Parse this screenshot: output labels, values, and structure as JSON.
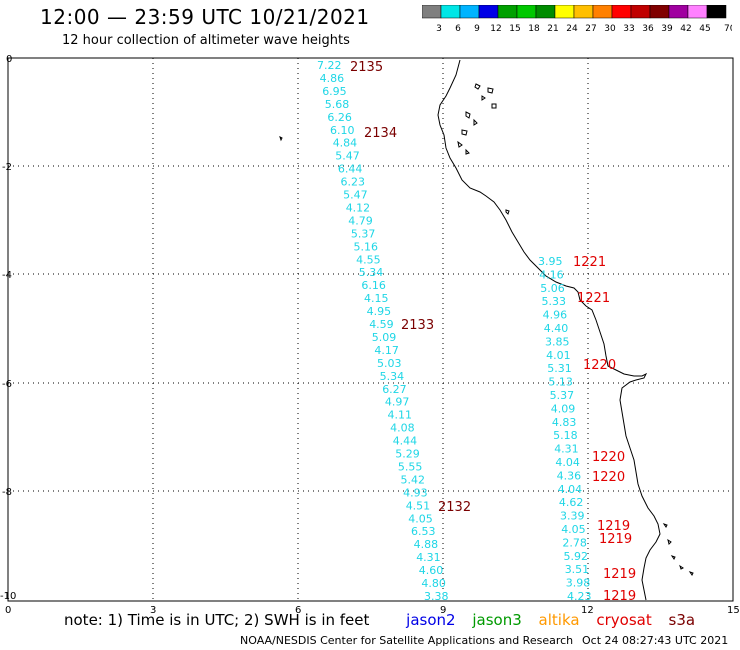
{
  "header": {
    "title": "12:00 — 23:59 UTC 10/21/2021",
    "subtitle": "12 hour collection of altimeter wave heights"
  },
  "colorbar": {
    "labels": [
      "3",
      "6",
      "9",
      "12",
      "15",
      "18",
      "21",
      "24",
      "27",
      "30",
      "33",
      "36",
      "39",
      "42",
      "45",
      "70 (ft)"
    ],
    "colors": [
      "#7f7f7f",
      "#00e6e6",
      "#00b4ff",
      "#0000e6",
      "#00a000",
      "#00c800",
      "#008c00",
      "#ffff00",
      "#ffbf00",
      "#ff8000",
      "#ff0000",
      "#c00000",
      "#800000",
      "#a000a0",
      "#ff80ff",
      "#000000"
    ]
  },
  "axes": {
    "x_ticks": [
      "0",
      "3",
      "6",
      "9",
      "12",
      "15"
    ],
    "y_ticks": [
      "0",
      "-2",
      "-4",
      "-6",
      "-8",
      "-10"
    ]
  },
  "passes": {
    "p2135": "2135",
    "p2134": "2134",
    "p2133": "2133",
    "p2132": "2132",
    "p1221a": "1221",
    "p1221b": "1221",
    "p1220a": "1220",
    "p1220b": "1220",
    "p1220c": "1220",
    "p1219a": "1219",
    "p1219b": "1219",
    "p1219c": "1219",
    "p1219d": "1219"
  },
  "track1_values": [
    "7.22",
    "4.86",
    "6.95",
    "5.68",
    "6.26",
    "6.10",
    "4.84",
    "5.47",
    "6.44",
    "6.23",
    "5.47",
    "4.12",
    "4.79",
    "5.37",
    "5.16",
    "4.55",
    "5.34",
    "6.16",
    "4.15",
    "4.95",
    "4.59",
    "5.09",
    "4.17",
    "5.03",
    "5.34",
    "6.27",
    "4.97",
    "4.11",
    "4.08",
    "4.44",
    "5.29",
    "5.55",
    "5.42",
    "4.93",
    "4.51",
    "4.05",
    "6.53",
    "4.88",
    "4.31",
    "4.60",
    "4.80",
    "3.38"
  ],
  "track2_values": [
    "3.95",
    "4.16",
    "5.06",
    "5.33",
    "4.96",
    "4.40",
    "3.85",
    "4.01",
    "5.31",
    "5.13",
    "5.37",
    "4.09",
    "4.83",
    "5.18",
    "4.31",
    "4.04",
    "4.36",
    "4.04",
    "4.62",
    "3.39",
    "4.05",
    "2.78",
    "5.92",
    "3.51",
    "3.98",
    "4.23"
  ],
  "legend": {
    "note": "note:  1) Time is in UTC;  2) SWH is in feet",
    "jason2": "jason2",
    "jason3": "jason3",
    "altika": "altika",
    "cryosat": "cryosat",
    "s3a": "s3a"
  },
  "footer": {
    "credit": "NOAA/NESDIS Center for Satellite Applications and Research",
    "timestamp": "Oct 24 08:27:43 UTC 2021"
  }
}
